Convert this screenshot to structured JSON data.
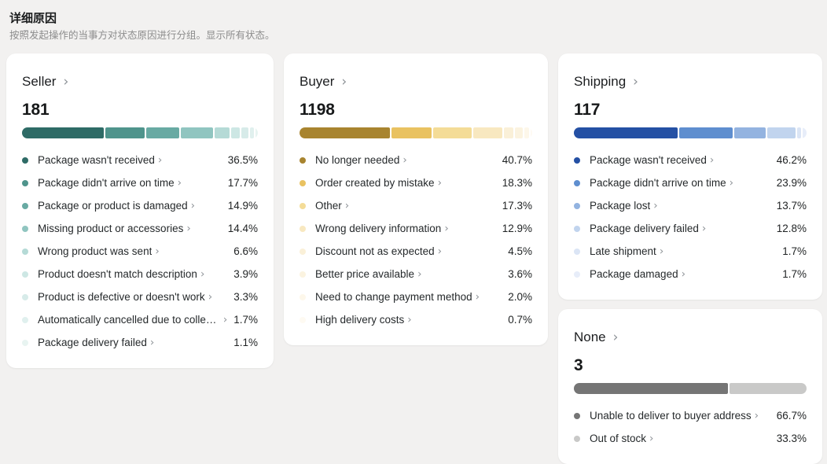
{
  "header": {
    "title": "详细原因",
    "subtitle": "按照发起操作的当事方对状态原因进行分组。显示所有状态。"
  },
  "icons": {
    "chevron_right": "›"
  },
  "cards": [
    {
      "slot": "col-1",
      "title": "Seller",
      "count": "181",
      "items": [
        {
          "label": "Package wasn't received",
          "value": "36.5%",
          "pct": 36.5,
          "color": "#2e6b66"
        },
        {
          "label": "Package didn't arrive on time",
          "value": "17.7%",
          "pct": 17.7,
          "color": "#4f948c"
        },
        {
          "label": "Package or product is damaged",
          "value": "14.9%",
          "pct": 14.9,
          "color": "#68aaa3"
        },
        {
          "label": "Missing product or accessories",
          "value": "14.4%",
          "pct": 14.4,
          "color": "#90c5c0"
        },
        {
          "label": "Wrong product was sent",
          "value": "6.6%",
          "pct": 6.6,
          "color": "#b5dad6"
        },
        {
          "label": "Product doesn't match description",
          "value": "3.9%",
          "pct": 3.9,
          "color": "#cde7e4"
        },
        {
          "label": "Product is defective or doesn't work",
          "value": "3.3%",
          "pct": 3.3,
          "color": "#d7ebe9"
        },
        {
          "label": "Automatically cancelled due to collec…",
          "value": "1.7%",
          "pct": 1.7,
          "color": "#e0f0ee"
        },
        {
          "label": "Package delivery failed",
          "value": "1.1%",
          "pct": 1.1,
          "color": "#e8f4f1"
        }
      ]
    },
    {
      "slot": "col-2",
      "title": "Buyer",
      "count": "1198",
      "items": [
        {
          "label": "No longer needed",
          "value": "40.7%",
          "pct": 40.7,
          "color": "#a8842f"
        },
        {
          "label": "Order created by mistake",
          "value": "18.3%",
          "pct": 18.3,
          "color": "#e9c261"
        },
        {
          "label": "Other",
          "value": "17.3%",
          "pct": 17.3,
          "color": "#f4dc97"
        },
        {
          "label": "Wrong delivery information",
          "value": "12.9%",
          "pct": 12.9,
          "color": "#f8e8c0"
        },
        {
          "label": "Discount not as expected",
          "value": "4.5%",
          "pct": 4.5,
          "color": "#faf0d8"
        },
        {
          "label": "Better price available",
          "value": "3.6%",
          "pct": 3.6,
          "color": "#fbf3e0"
        },
        {
          "label": "Need to change payment method",
          "value": "2.0%",
          "pct": 2.0,
          "color": "#fdf7ea"
        },
        {
          "label": "High delivery costs",
          "value": "0.7%",
          "pct": 0.7,
          "color": "#fefaf2"
        }
      ]
    },
    {
      "slot": "col-3",
      "title": "Shipping",
      "count": "117",
      "items": [
        {
          "label": "Package wasn't received",
          "value": "46.2%",
          "pct": 46.2,
          "color": "#2450a4"
        },
        {
          "label": "Package didn't arrive on time",
          "value": "23.9%",
          "pct": 23.9,
          "color": "#5e8ecf"
        },
        {
          "label": "Package lost",
          "value": "13.7%",
          "pct": 13.7,
          "color": "#93b3e0"
        },
        {
          "label": "Package delivery failed",
          "value": "12.8%",
          "pct": 12.8,
          "color": "#c1d4ee"
        },
        {
          "label": "Late shipment",
          "value": "1.7%",
          "pct": 1.7,
          "color": "#dbe5f5"
        },
        {
          "label": "Package damaged",
          "value": "1.7%",
          "pct": 1.7,
          "color": "#e7edf9"
        }
      ]
    },
    {
      "slot": "col-3",
      "title": "None",
      "count": "3",
      "items": [
        {
          "label": "Unable to deliver to buyer address",
          "value": "66.7%",
          "pct": 66.7,
          "color": "#757575"
        },
        {
          "label": "Out of stock",
          "value": "33.3%",
          "pct": 33.3,
          "color": "#c9c9c8"
        }
      ]
    }
  ]
}
